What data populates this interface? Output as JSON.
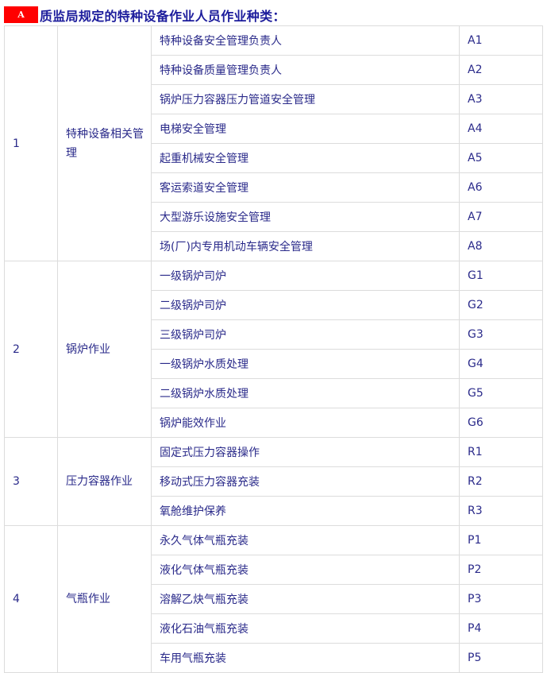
{
  "heading": {
    "badge": "A",
    "title": "质监局规定的特种设备作业人员作业种类："
  },
  "groups": [
    {
      "no": "1",
      "category": "特种设备相关管理",
      "items": [
        {
          "name": "特种设备安全管理负责人",
          "code": "A1"
        },
        {
          "name": "特种设备质量管理负责人",
          "code": "A2"
        },
        {
          "name": "锅炉压力容器压力管道安全管理",
          "code": "A3"
        },
        {
          "name": "电梯安全管理",
          "code": "A4"
        },
        {
          "name": "起重机械安全管理",
          "code": "A5"
        },
        {
          "name": "客运索道安全管理",
          "code": "A6"
        },
        {
          "name": "大型游乐设施安全管理",
          "code": "A7"
        },
        {
          "name": "场(厂)内专用机动车辆安全管理",
          "code": "A8"
        }
      ]
    },
    {
      "no": "2",
      "category": "锅炉作业",
      "items": [
        {
          "name": "一级锅炉司炉",
          "code": "G1"
        },
        {
          "name": "二级锅炉司炉",
          "code": "G2"
        },
        {
          "name": "三级锅炉司炉",
          "code": "G3"
        },
        {
          "name": "一级锅炉水质处理",
          "code": "G4"
        },
        {
          "name": "二级锅炉水质处理",
          "code": "G5"
        },
        {
          "name": "锅炉能效作业",
          "code": "G6"
        }
      ]
    },
    {
      "no": "3",
      "category": "压力容器作业",
      "items": [
        {
          "name": "固定式压力容器操作",
          "code": "R1"
        },
        {
          "name": "移动式压力容器充装",
          "code": "R2"
        },
        {
          "name": "氧舱维护保养",
          "code": "R3"
        }
      ]
    },
    {
      "no": "4",
      "category": "气瓶作业",
      "items": [
        {
          "name": "永久气体气瓶充装",
          "code": "P1"
        },
        {
          "name": "液化气体气瓶充装",
          "code": "P2"
        },
        {
          "name": "溶解乙炔气瓶充装",
          "code": "P3"
        },
        {
          "name": "液化石油气瓶充装",
          "code": "P4"
        },
        {
          "name": "车用气瓶充装",
          "code": "P5"
        }
      ]
    }
  ]
}
